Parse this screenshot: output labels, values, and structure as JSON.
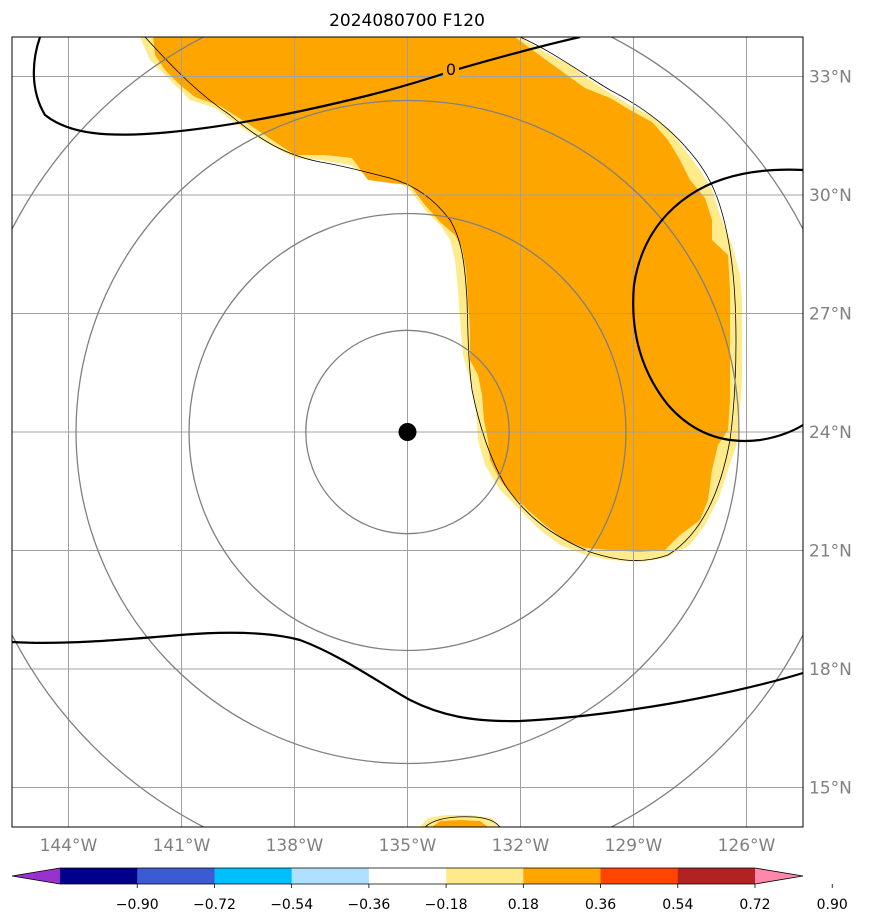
{
  "chart_data": {
    "type": "map-contour",
    "title": "2024080700 F120",
    "lon_range": [
      -145.5,
      -124.5
    ],
    "lat_range": [
      14,
      34
    ],
    "lon_ticks": [
      -144,
      -141,
      -138,
      -135,
      -132,
      -129,
      -126
    ],
    "lon_tick_labels": [
      "144°W",
      "141°W",
      "138°W",
      "135°W",
      "132°W",
      "129°W",
      "126°W"
    ],
    "lat_ticks": [
      15,
      18,
      21,
      24,
      27,
      30,
      33
    ],
    "lat_tick_labels": [
      "15°N",
      "18°N",
      "21°N",
      "24°N",
      "27°N",
      "30°N",
      "33°N"
    ],
    "center": {
      "lon": -135,
      "lat": 24
    },
    "range_rings_deg": [
      2.7,
      5.8,
      8.8,
      11.8
    ],
    "contour_line": {
      "level_label": "0"
    },
    "colorbar": {
      "boundaries": [
        -0.9,
        -0.72,
        -0.54,
        -0.36,
        -0.18,
        0.18,
        0.36,
        0.54,
        0.72,
        0.9
      ],
      "tick_labels": [
        "−0.90",
        "−0.72",
        "−0.54",
        "−0.36",
        "−0.18",
        "0.18",
        "0.36",
        "0.54",
        "0.72",
        "0.90"
      ],
      "colors": [
        "#9932cc",
        "#00008b",
        "#3c5ad2",
        "#00bfff",
        "#b0e0ff",
        "#ffffff",
        "#ffeb8c",
        "#ffa500",
        "#ff4500",
        "#b22222",
        "#ff88aa"
      ],
      "extend": "both"
    },
    "filled_region_colors": {
      "light": "#ffeb8c",
      "main": "#ffa500"
    }
  }
}
